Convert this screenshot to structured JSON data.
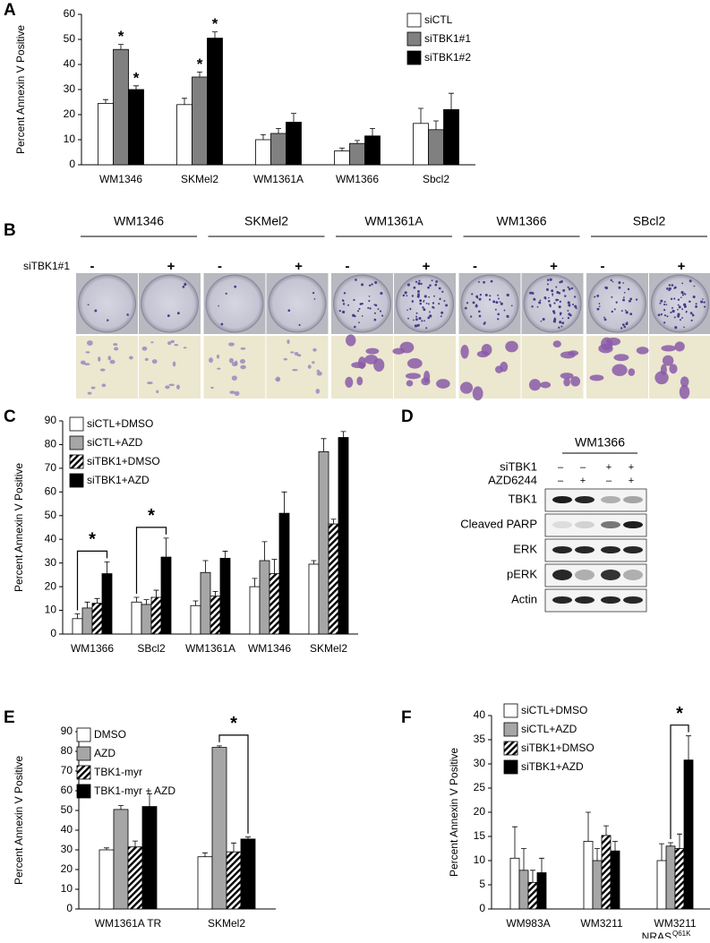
{
  "chart_data": [
    {
      "type": "bar",
      "panel": "A",
      "ylabel": "Percent Annexin V Positive",
      "categories": [
        "WM1346",
        "SKMel2",
        "WM1361A",
        "WM1366",
        "Sbcl2"
      ],
      "series": [
        {
          "name": "siCTL",
          "color": "#ffffff",
          "values": [
            24.5,
            24,
            10,
            5.5,
            16.5
          ],
          "errors": [
            1.5,
            2.5,
            2,
            1.2,
            6
          ]
        },
        {
          "name": "siTBK1#1",
          "color": "#808080",
          "values": [
            46,
            35,
            12.5,
            8.5,
            14
          ],
          "errors": [
            2,
            2,
            2,
            1.2,
            3.5
          ]
        },
        {
          "name": "siTBK1#2",
          "color": "#000000",
          "values": [
            30,
            50.5,
            17,
            11.5,
            22
          ],
          "errors": [
            1.5,
            2.5,
            3.5,
            3,
            6.5
          ]
        }
      ],
      "ylim": [
        0,
        60
      ],
      "yticks": [
        0,
        10,
        20,
        30,
        40,
        50,
        60
      ],
      "legend": "upper right",
      "significance": [
        {
          "category": 0,
          "series": [
            1
          ],
          "label": "*"
        },
        {
          "category": 0,
          "series": [
            2
          ],
          "label": "*"
        },
        {
          "category": 1,
          "series": [
            1
          ],
          "label": "*"
        },
        {
          "category": 1,
          "series": [
            2
          ],
          "label": "*"
        }
      ]
    },
    {
      "type": "bar",
      "panel": "C",
      "ylabel": "Percent Annexin V Positive",
      "categories": [
        "WM1366",
        "SBcl2",
        "WM1361A",
        "WM1346",
        "SKMel2"
      ],
      "series": [
        {
          "name": "siCTL+DMSO",
          "color": "#ffffff",
          "values": [
            6.5,
            13.5,
            12,
            20,
            29.5
          ],
          "errors": [
            2,
            2,
            2,
            3.5,
            1.5
          ]
        },
        {
          "name": "siCTL+AZD",
          "color": "#a6a6a6",
          "values": [
            11,
            12.5,
            26,
            31,
            77
          ],
          "errors": [
            2.5,
            2,
            5,
            8,
            5.5
          ]
        },
        {
          "name": "siTBK1+DMSO",
          "color": "#000000",
          "pattern": "diagonal-hatch",
          "values": [
            13,
            15.5,
            16,
            25.5,
            46.5
          ],
          "errors": [
            2,
            3,
            2,
            6,
            2
          ]
        },
        {
          "name": "siTBK1+AZD",
          "color": "#000000",
          "values": [
            25.5,
            32.5,
            32,
            51,
            83
          ],
          "errors": [
            5,
            8,
            3,
            9,
            2.5
          ]
        }
      ],
      "ylim": [
        0,
        90
      ],
      "yticks": [
        0,
        10,
        20,
        30,
        40,
        50,
        60,
        70,
        80,
        90
      ],
      "legend": "upper left",
      "significance": [
        {
          "category": 0,
          "series": [
            0,
            3
          ],
          "label": "*"
        },
        {
          "category": 1,
          "series": [
            0,
            3
          ],
          "label": "*"
        }
      ]
    },
    {
      "type": "bar",
      "panel": "E",
      "ylabel": "Percent Annexin V  Positive",
      "categories": [
        "WM1361A TR",
        "SKMel2"
      ],
      "series": [
        {
          "name": "DMSO",
          "color": "#ffffff",
          "values": [
            30,
            26.5
          ],
          "errors": [
            1,
            2
          ]
        },
        {
          "name": "AZD",
          "color": "#a6a6a6",
          "values": [
            50.5,
            82
          ],
          "errors": [
            2,
            0.8
          ]
        },
        {
          "name": "TBK1-myr",
          "color": "#000000",
          "pattern": "diagonal-hatch",
          "values": [
            31.5,
            29
          ],
          "errors": [
            3,
            4.5
          ]
        },
        {
          "name": "TBK1-myr + AZD",
          "color": "#000000",
          "values": [
            52,
            35.5
          ],
          "errors": [
            6.5,
            1
          ]
        }
      ],
      "ylim": [
        0,
        90
      ],
      "yticks": [
        0,
        10,
        20,
        30,
        40,
        50,
        60,
        70,
        80,
        90
      ],
      "legend": "upper left",
      "significance": [
        {
          "category": 1,
          "series": [
            1,
            3
          ],
          "label": "*"
        }
      ]
    },
    {
      "type": "bar",
      "panel": "F",
      "ylabel": "Percent Annexin V Positive",
      "categories": [
        "WM983A",
        "WM3211",
        "WM3211"
      ],
      "sublabels": [
        null,
        null,
        "NRAS"
      ],
      "sublabel_sups": [
        null,
        null,
        "Q61K"
      ],
      "series": [
        {
          "name": "siCTL+DMSO",
          "color": "#ffffff",
          "values": [
            10.5,
            14,
            10
          ],
          "errors": [
            6.5,
            6,
            3.5
          ]
        },
        {
          "name": "siCTL+AZD",
          "color": "#a6a6a6",
          "values": [
            8,
            10,
            13
          ],
          "errors": [
            4.5,
            2.5,
            0.7
          ]
        },
        {
          "name": "siTBK1+DMSO",
          "color": "#000000",
          "pattern": "diagonal-hatch",
          "values": [
            5.5,
            15.2,
            12.5
          ],
          "errors": [
            2.5,
            2,
            3
          ]
        },
        {
          "name": "siTBK1+AZD",
          "color": "#000000",
          "values": [
            7.5,
            12,
            30.8
          ],
          "errors": [
            3,
            2,
            5
          ]
        }
      ],
      "ylim": [
        0,
        40
      ],
      "yticks": [
        0,
        5,
        10,
        15,
        20,
        25,
        30,
        35,
        40
      ],
      "legend": "upper left",
      "significance": [
        {
          "category": 2,
          "series": [
            1,
            3
          ],
          "label": "*"
        }
      ]
    }
  ],
  "panel_b": {
    "label": "B",
    "row_label": "siTBK1#1",
    "cell_lines": [
      "WM1346",
      "SKMel2",
      "WM1361A",
      "WM1366",
      "SBcl2"
    ],
    "conditions": [
      "-",
      "+"
    ]
  },
  "panel_d": {
    "label": "D",
    "cell_line": "WM1366",
    "treatments": [
      {
        "name": "siTBK1",
        "signs": [
          "–",
          "–",
          "+",
          "+"
        ]
      },
      {
        "name": "AZD6244",
        "signs": [
          "–",
          "+",
          "–",
          "+"
        ]
      }
    ],
    "blots": [
      "TBK1",
      "Cleaved PARP",
      "ERK",
      "pERK",
      "Actin"
    ]
  }
}
